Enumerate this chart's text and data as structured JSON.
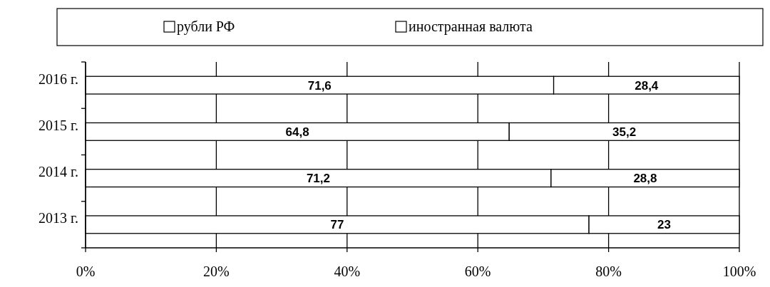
{
  "chart_data": {
    "type": "bar",
    "orientation": "horizontal",
    "stacked": true,
    "categories": [
      "2016 г.",
      "2015 г.",
      "2014 г.",
      "2013 г."
    ],
    "series": [
      {
        "name": "рубли РФ",
        "color": "#ffffff",
        "values": [
          71.6,
          64.8,
          71.2,
          77
        ],
        "value_labels": [
          "71,6",
          "64,8",
          "71,2",
          "77"
        ]
      },
      {
        "name": "иностранная валюта",
        "color": "#ffffff",
        "values": [
          28.4,
          35.2,
          28.8,
          23
        ],
        "value_labels": [
          "28,4",
          "35,2",
          "28,8",
          "23"
        ]
      }
    ],
    "xlim": [
      0,
      100
    ],
    "xticks": [
      {
        "value": 0,
        "label": "0%"
      },
      {
        "value": 20,
        "label": "20%"
      },
      {
        "value": 40,
        "label": "40%"
      },
      {
        "value": 60,
        "label": "60%"
      },
      {
        "value": 80,
        "label": "80%"
      },
      {
        "value": 100,
        "label": "100%"
      }
    ],
    "grid": "x",
    "legend": "top"
  }
}
